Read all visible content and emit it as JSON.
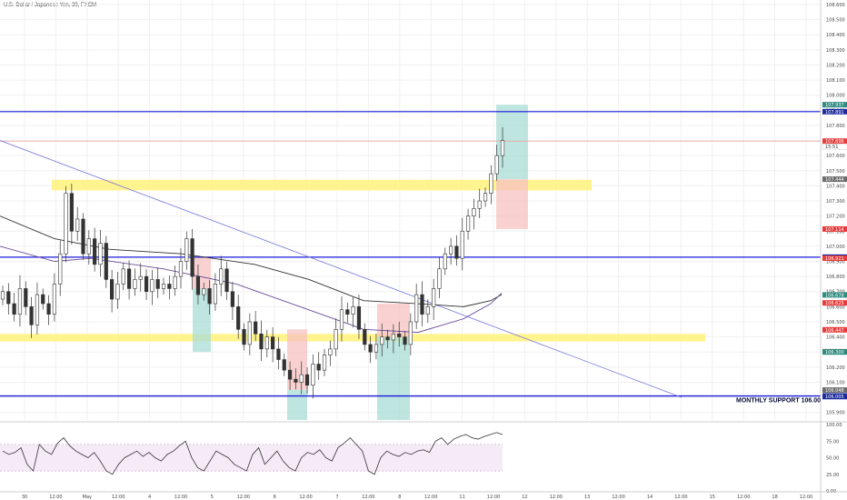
{
  "header": {
    "symbol": "U.S. Dollar / Japanese Yen, 30, FXCM"
  },
  "colors": {
    "up_candle": "#3a3a3a",
    "down_candle": "#3a3a3a",
    "support_line": "#1a1adb",
    "trend_line": "#7777dd",
    "zone_yellow": "#fff27a",
    "short_red": "#f7c1c1",
    "target_green": "#a9dcd6",
    "ma_dark": "#333333",
    "ma_purple": "#6a4f9a",
    "rsi_line": "#333333",
    "badge_blue": "#1d2a9e",
    "badge_red": "#e83a3a",
    "badge_gray": "#6b6b6b",
    "badge_teal": "#2e8b7f"
  },
  "chart_data": {
    "type": "candlestick",
    "symbol": "U.S. Dollar / Japanese Yen, 30, FXCM",
    "y_range": [
      105.85,
      108.63
    ],
    "price_ticks": [
      "108.600",
      "108.500",
      "108.400",
      "108.300",
      "108.200",
      "108.100",
      "108.000",
      "107.900",
      "107.800",
      "107.700",
      "107.600",
      "107.500",
      "107.400",
      "107.300",
      "107.200",
      "107.100",
      "107.000",
      "106.900",
      "106.800",
      "106.700",
      "106.600",
      "106.500",
      "106.400",
      "106.300",
      "106.200",
      "106.100",
      "106.000",
      "105.900"
    ],
    "time_ticks": [
      "30",
      "12:00",
      "May",
      "12:00",
      "4",
      "12:00",
      "5",
      "12:00",
      "6",
      "12:00",
      "7",
      "12:00",
      "8",
      "12:00",
      "11",
      "12:00",
      "12",
      "12:00",
      "13",
      "12:00",
      "14",
      "12:00",
      "15",
      "12:00",
      "18",
      "12:00"
    ],
    "price_close_path": [
      106.7,
      106.62,
      106.55,
      106.72,
      106.6,
      106.48,
      106.68,
      106.62,
      106.55,
      106.75,
      106.95,
      107.35,
      107.1,
      107.18,
      106.95,
      107.05,
      106.88,
      107.02,
      106.78,
      106.65,
      106.75,
      106.85,
      106.72,
      106.78,
      106.8,
      106.7,
      106.78,
      106.72,
      106.75,
      106.72,
      106.8,
      106.9,
      107.05,
      106.8,
      106.68,
      106.72,
      106.62,
      106.75,
      106.85,
      106.7,
      106.6,
      106.45,
      106.35,
      106.5,
      106.42,
      106.32,
      106.4,
      106.32,
      106.25,
      106.18,
      106.12,
      106.1,
      106.15,
      106.08,
      106.22,
      106.18,
      106.28,
      106.32,
      106.45,
      106.58,
      106.55,
      106.6,
      106.45,
      106.35,
      106.3,
      106.35,
      106.4,
      106.38,
      106.42,
      106.4,
      106.35,
      106.5,
      106.68,
      106.55,
      106.6,
      106.72,
      106.85,
      106.95,
      107.0,
      106.92,
      107.1,
      107.2,
      107.25,
      107.3,
      107.35,
      107.48,
      107.6,
      107.7
    ],
    "series": [
      {
        "name": "EMA 200",
        "kind": "line"
      },
      {
        "name": "SMA 200",
        "kind": "line"
      },
      {
        "name": "RSI",
        "kind": "line",
        "panel": "lower"
      }
    ],
    "horizontal_lines": [
      107.891,
      106.928,
      106.009,
      107.696
    ],
    "zones": [
      {
        "kind": "yellow",
        "y": [
          107.37,
          107.44
        ]
      },
      {
        "kind": "yellow",
        "y": [
          106.37,
          106.42
        ]
      }
    ],
    "price_labels": [
      {
        "value": "107.937",
        "style": "badge_teal"
      },
      {
        "value": "107.891",
        "style": "badge_blue"
      },
      {
        "value": "107.696",
        "style": "badge_red"
      },
      {
        "value": "15:51",
        "style": "white"
      },
      {
        "value": "107.444",
        "style": "badge_gray"
      },
      {
        "value": "107.114",
        "style": "badge_red"
      },
      {
        "value": "106.928",
        "style": "badge_blue"
      },
      {
        "value": "106.921",
        "style": "badge_red"
      },
      {
        "value": "106.678",
        "style": "badge_teal"
      },
      {
        "value": "106.625",
        "style": "badge_red"
      },
      {
        "value": "106.447",
        "style": "badge_red"
      },
      {
        "value": "106.302",
        "style": "badge_gray"
      },
      {
        "value": "106.300",
        "style": "badge_teal"
      },
      {
        "value": "106.048",
        "style": "badge_gray"
      },
      {
        "value": "106.009",
        "style": "badge_blue"
      },
      {
        "value": "106.005",
        "style": "badge_blue"
      }
    ],
    "annotations": [
      "MONTHLY SUPPORT 106.00"
    ],
    "rsi_ticks": [
      "100.00",
      "75.00",
      "50.00",
      "25.00",
      "0.00"
    ],
    "rsi_values": [
      60,
      55,
      58,
      65,
      40,
      30,
      70,
      60,
      55,
      72,
      80,
      68,
      60,
      55,
      50,
      58,
      45,
      30,
      25,
      40,
      50,
      55,
      60,
      52,
      58,
      50,
      45,
      55,
      60,
      68,
      75,
      50,
      35,
      30,
      45,
      60,
      55,
      50,
      40,
      35,
      30,
      55,
      65,
      40,
      50,
      60,
      45,
      35,
      30,
      50,
      58,
      55,
      62,
      50,
      45,
      65,
      72,
      80,
      70,
      60,
      30,
      25,
      50,
      60,
      55,
      52,
      58,
      55,
      60,
      62,
      58,
      75,
      80,
      70,
      78,
      82,
      85,
      80,
      78,
      82,
      85,
      88,
      85
    ]
  }
}
